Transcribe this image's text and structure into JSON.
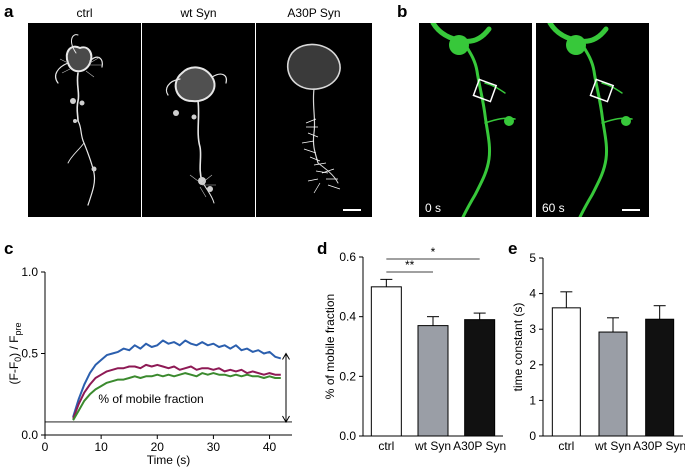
{
  "panels": {
    "a": {
      "label": "a",
      "images": [
        {
          "caption": "ctrl"
        },
        {
          "caption": "wt Syn"
        },
        {
          "caption": "A30P Syn"
        }
      ]
    },
    "b": {
      "label": "b",
      "images": [
        {
          "time": "0 s"
        },
        {
          "time": "60 s"
        }
      ]
    },
    "c": {
      "label": "c"
    },
    "d": {
      "label": "d"
    },
    "e": {
      "label": "e"
    }
  },
  "colors": {
    "ctrl_line": "#2b5fae",
    "wt_line": "#8e1a55",
    "a30p_line": "#3b8a2e",
    "ctrl_bar": "#ffffff",
    "wt_bar": "#9a9ea6",
    "a30p_bar": "#111111",
    "gfp": "#37c83a"
  },
  "chart_data": [
    {
      "id": "c",
      "type": "line",
      "xlabel": "Time (s)",
      "ylabel": "(F-F0) / Fpre",
      "xlim": [
        0,
        44
      ],
      "ylim": [
        0,
        1.0
      ],
      "xticks": [
        "0",
        "10",
        "20",
        "30",
        "40"
      ],
      "yticks": [
        "0.0",
        "0.5",
        "1.0"
      ],
      "baseline": 0.08,
      "annotation": "% of mobile fraction",
      "series": [
        {
          "key": "ctrl",
          "color": "#2b5fae",
          "x": [
            5,
            6,
            7,
            8,
            9,
            10,
            11,
            12,
            13,
            14,
            15,
            16,
            17,
            18,
            19,
            20,
            21,
            22,
            23,
            24,
            25,
            26,
            27,
            28,
            29,
            30,
            31,
            32,
            33,
            34,
            35,
            36,
            37,
            38,
            39,
            40,
            41,
            42
          ],
          "y": [
            0.11,
            0.22,
            0.31,
            0.38,
            0.43,
            0.46,
            0.49,
            0.5,
            0.51,
            0.53,
            0.52,
            0.55,
            0.53,
            0.56,
            0.54,
            0.55,
            0.58,
            0.56,
            0.57,
            0.55,
            0.58,
            0.56,
            0.55,
            0.57,
            0.55,
            0.56,
            0.54,
            0.55,
            0.53,
            0.55,
            0.52,
            0.53,
            0.51,
            0.52,
            0.5,
            0.51,
            0.48,
            0.47
          ]
        },
        {
          "key": "wt Syn",
          "color": "#8e1a55",
          "x": [
            5,
            6,
            7,
            8,
            9,
            10,
            11,
            12,
            13,
            14,
            15,
            16,
            17,
            18,
            19,
            20,
            21,
            22,
            23,
            24,
            25,
            26,
            27,
            28,
            29,
            30,
            31,
            32,
            33,
            34,
            35,
            36,
            37,
            38,
            39,
            40,
            41,
            42
          ],
          "y": [
            0.1,
            0.19,
            0.26,
            0.31,
            0.35,
            0.37,
            0.39,
            0.4,
            0.41,
            0.41,
            0.42,
            0.42,
            0.41,
            0.43,
            0.42,
            0.43,
            0.42,
            0.41,
            0.42,
            0.4,
            0.41,
            0.42,
            0.4,
            0.41,
            0.41,
            0.4,
            0.41,
            0.39,
            0.4,
            0.39,
            0.4,
            0.38,
            0.39,
            0.38,
            0.37,
            0.38,
            0.37,
            0.37
          ]
        },
        {
          "key": "A30P Syn",
          "color": "#3b8a2e",
          "x": [
            5,
            6,
            7,
            8,
            9,
            10,
            11,
            12,
            13,
            14,
            15,
            16,
            17,
            18,
            19,
            20,
            21,
            22,
            23,
            24,
            25,
            26,
            27,
            28,
            29,
            30,
            31,
            32,
            33,
            34,
            35,
            36,
            37,
            38,
            39,
            40,
            41,
            42
          ],
          "y": [
            0.09,
            0.15,
            0.21,
            0.25,
            0.28,
            0.3,
            0.32,
            0.33,
            0.34,
            0.34,
            0.35,
            0.36,
            0.35,
            0.36,
            0.36,
            0.37,
            0.36,
            0.37,
            0.36,
            0.37,
            0.38,
            0.37,
            0.36,
            0.38,
            0.37,
            0.38,
            0.37,
            0.37,
            0.36,
            0.37,
            0.36,
            0.37,
            0.36,
            0.36,
            0.35,
            0.36,
            0.35,
            0.35
          ]
        }
      ]
    },
    {
      "id": "d",
      "type": "bar",
      "ylabel": "% of mobile fraction",
      "categories": [
        "ctrl",
        "wt Syn",
        "A30P Syn"
      ],
      "values": [
        0.5,
        0.37,
        0.39
      ],
      "errors": [
        0.025,
        0.03,
        0.022
      ],
      "ylim": [
        0,
        0.6
      ],
      "yticks": [
        "0.0",
        "0.2",
        "0.4",
        "0.6"
      ],
      "significance": [
        {
          "from": 0,
          "to": 1,
          "label": "**"
        },
        {
          "from": 0,
          "to": 2,
          "label": "*"
        }
      ]
    },
    {
      "id": "e",
      "type": "bar",
      "ylabel": "time constant (s)",
      "categories": [
        "ctrl",
        "wt Syn",
        "A30P Syn"
      ],
      "values": [
        3.6,
        2.92,
        3.28
      ],
      "errors": [
        0.45,
        0.4,
        0.38
      ],
      "ylim": [
        0,
        5
      ],
      "yticks": [
        "0",
        "1",
        "2",
        "3",
        "4",
        "5"
      ]
    }
  ]
}
